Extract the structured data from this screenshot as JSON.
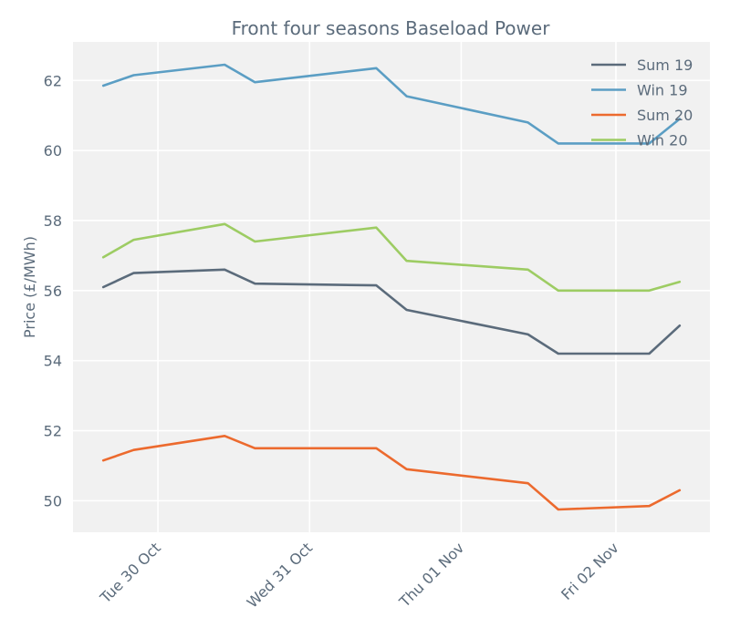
{
  "chart_data": {
    "type": "line",
    "title": "Front four seasons Baseload Power",
    "xlabel": "",
    "ylabel": "Price (£/MWh)",
    "xlim": [
      0,
      21
    ],
    "ylim": [
      49.1,
      63.1
    ],
    "y_ticks": [
      50,
      52,
      54,
      56,
      58,
      60,
      62
    ],
    "x_ticks": [
      {
        "label": "Tue 30 Oct",
        "x": 2.8
      },
      {
        "label": "Wed 31 Oct",
        "x": 7.8
      },
      {
        "label": "Thu 01 Nov",
        "x": 12.8
      },
      {
        "label": "Fri 02 Nov",
        "x": 17.9
      }
    ],
    "grid": true,
    "legend_position": "top-right",
    "x": [
      1,
      2,
      5,
      6,
      10,
      11,
      15,
      16,
      19,
      20
    ],
    "series": [
      {
        "name": "Sum 19",
        "color": "#5b6b7b",
        "values": [
          56.1,
          56.5,
          56.6,
          56.2,
          56.15,
          55.45,
          54.75,
          54.2,
          54.2,
          55.0
        ]
      },
      {
        "name": "Win 19",
        "color": "#5b9ec4",
        "values": [
          61.85,
          62.15,
          62.45,
          61.95,
          62.35,
          61.55,
          60.8,
          60.2,
          60.2,
          60.9
        ]
      },
      {
        "name": "Sum 20",
        "color": "#ec6a2e",
        "values": [
          51.15,
          51.45,
          51.85,
          51.5,
          51.5,
          50.9,
          50.5,
          49.75,
          49.85,
          50.3
        ]
      },
      {
        "name": "Win 20",
        "color": "#9dcc63",
        "values": [
          56.95,
          57.45,
          57.9,
          57.4,
          57.8,
          56.85,
          56.6,
          56.0,
          56.0,
          56.25
        ]
      }
    ]
  }
}
